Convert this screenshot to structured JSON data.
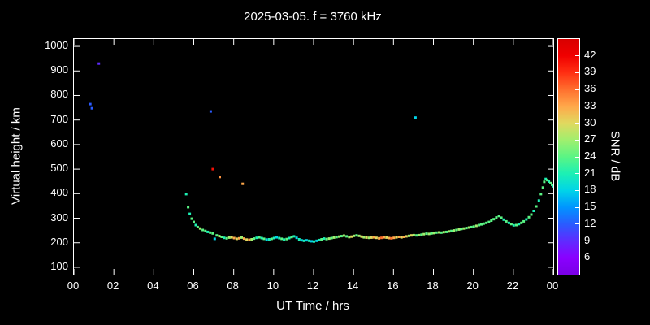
{
  "chart_data": {
    "type": "scatter",
    "title": "2025-03-05. f = 3760 kHz",
    "xlabel": "UT Time / hrs",
    "ylabel": "Virtual height / km",
    "xlim": [
      0,
      24
    ],
    "ylim": [
      70,
      1030
    ],
    "grid": false,
    "background": "#000000",
    "axis_color": "#ffffff",
    "marker": "square",
    "marker_size_px": 3,
    "x_ticks": {
      "values": [
        0,
        2,
        4,
        6,
        8,
        10,
        12,
        14,
        16,
        18,
        20,
        22,
        24
      ],
      "labels": [
        "00",
        "02",
        "04",
        "06",
        "08",
        "10",
        "12",
        "14",
        "16",
        "18",
        "20",
        "22",
        "00"
      ]
    },
    "y_ticks": [
      100,
      200,
      300,
      400,
      500,
      600,
      700,
      800,
      900,
      1000
    ],
    "colorbar": {
      "label": "SNR / dB",
      "ticks": [
        6,
        9,
        12,
        15,
        18,
        21,
        24,
        27,
        30,
        33,
        36,
        39,
        42
      ],
      "range": [
        3,
        45
      ],
      "stops": [
        {
          "v": 3,
          "c": "#7a00e6"
        },
        {
          "v": 6,
          "c": "#8a00ff"
        },
        {
          "v": 9,
          "c": "#5f2bff"
        },
        {
          "v": 12,
          "c": "#2a5bff"
        },
        {
          "v": 15,
          "c": "#0095ff"
        },
        {
          "v": 18,
          "c": "#00d4e8"
        },
        {
          "v": 21,
          "c": "#1cf0b4"
        },
        {
          "v": 24,
          "c": "#5af584"
        },
        {
          "v": 27,
          "c": "#a0ef6e"
        },
        {
          "v": 30,
          "c": "#e0d95f"
        },
        {
          "v": 33,
          "c": "#ffa84a"
        },
        {
          "v": 36,
          "c": "#ff6f2e"
        },
        {
          "v": 39,
          "c": "#ff2f12"
        },
        {
          "v": 42,
          "c": "#f00000"
        },
        {
          "v": 45,
          "c": "#d80000"
        }
      ]
    },
    "points_format": [
      "ut_hours",
      "virtual_height_km",
      "snr_db"
    ],
    "points": [
      [
        0.82,
        765,
        12
      ],
      [
        0.9,
        748,
        12
      ],
      [
        1.25,
        930,
        9
      ],
      [
        6.85,
        735,
        12
      ],
      [
        6.95,
        500,
        41
      ],
      [
        7.3,
        468,
        34
      ],
      [
        8.45,
        440,
        33
      ],
      [
        17.1,
        710,
        18
      ],
      [
        5.62,
        398,
        21
      ],
      [
        5.72,
        345,
        24
      ],
      [
        5.8,
        318,
        21
      ],
      [
        5.9,
        298,
        24
      ],
      [
        6.0,
        285,
        24
      ],
      [
        6.1,
        272,
        21
      ],
      [
        6.2,
        264,
        24
      ],
      [
        6.32,
        258,
        27
      ],
      [
        6.45,
        252,
        24
      ],
      [
        6.58,
        248,
        24
      ],
      [
        6.7,
        244,
        21
      ],
      [
        6.82,
        241,
        24
      ],
      [
        6.95,
        238,
        24
      ],
      [
        7.05,
        216,
        18
      ],
      [
        7.15,
        230,
        24
      ],
      [
        7.28,
        227,
        27
      ],
      [
        7.4,
        224,
        24
      ],
      [
        7.52,
        220,
        21
      ],
      [
        7.65,
        218,
        24
      ],
      [
        7.78,
        221,
        27
      ],
      [
        7.9,
        222,
        30
      ],
      [
        8.02,
        219,
        33
      ],
      [
        8.15,
        216,
        30
      ],
      [
        8.28,
        218,
        33
      ],
      [
        8.4,
        221,
        27
      ],
      [
        8.52,
        217,
        33
      ],
      [
        8.65,
        213,
        30
      ],
      [
        8.78,
        212,
        33
      ],
      [
        8.9,
        214,
        27
      ],
      [
        9.02,
        217,
        24
      ],
      [
        9.15,
        220,
        21
      ],
      [
        9.28,
        222,
        24
      ],
      [
        9.4,
        219,
        21
      ],
      [
        9.52,
        216,
        24
      ],
      [
        9.65,
        213,
        18
      ],
      [
        9.78,
        214,
        21
      ],
      [
        9.9,
        216,
        24
      ],
      [
        10.02,
        219,
        21
      ],
      [
        10.15,
        222,
        18
      ],
      [
        10.28,
        219,
        21
      ],
      [
        10.4,
        216,
        24
      ],
      [
        10.52,
        213,
        21
      ],
      [
        10.65,
        215,
        24
      ],
      [
        10.78,
        219,
        21
      ],
      [
        10.9,
        223,
        24
      ],
      [
        11.02,
        226,
        21
      ],
      [
        11.15,
        220,
        18
      ],
      [
        11.28,
        214,
        21
      ],
      [
        11.4,
        210,
        18
      ],
      [
        11.52,
        208,
        21
      ],
      [
        11.65,
        210,
        18
      ],
      [
        11.78,
        208,
        21
      ],
      [
        11.9,
        206,
        18
      ],
      [
        12.02,
        205,
        21
      ],
      [
        12.15,
        208,
        18
      ],
      [
        12.28,
        211,
        21
      ],
      [
        12.4,
        214,
        24
      ],
      [
        12.52,
        217,
        21
      ],
      [
        12.65,
        215,
        24
      ],
      [
        12.78,
        217,
        27
      ],
      [
        12.9,
        219,
        24
      ],
      [
        13.02,
        221,
        27
      ],
      [
        13.15,
        223,
        24
      ],
      [
        13.28,
        225,
        27
      ],
      [
        13.4,
        227,
        24
      ],
      [
        13.52,
        229,
        27
      ],
      [
        13.65,
        226,
        24
      ],
      [
        13.78,
        223,
        27
      ],
      [
        13.9,
        225,
        30
      ],
      [
        14.02,
        228,
        27
      ],
      [
        14.15,
        230,
        24
      ],
      [
        14.28,
        228,
        27
      ],
      [
        14.4,
        225,
        30
      ],
      [
        14.52,
        222,
        27
      ],
      [
        14.65,
        221,
        30
      ],
      [
        14.78,
        220,
        27
      ],
      [
        14.9,
        221,
        30
      ],
      [
        15.02,
        222,
        33
      ],
      [
        15.15,
        220,
        30
      ],
      [
        15.28,
        218,
        33
      ],
      [
        15.4,
        220,
        36
      ],
      [
        15.52,
        222,
        33
      ],
      [
        15.65,
        221,
        30
      ],
      [
        15.78,
        219,
        33
      ],
      [
        15.9,
        218,
        36
      ],
      [
        16.02,
        220,
        33
      ],
      [
        16.15,
        222,
        30
      ],
      [
        16.28,
        224,
        33
      ],
      [
        16.4,
        222,
        30
      ],
      [
        16.52,
        224,
        33
      ],
      [
        16.65,
        226,
        30
      ],
      [
        16.78,
        228,
        27
      ],
      [
        16.9,
        230,
        30
      ],
      [
        17.02,
        231,
        27
      ],
      [
        17.15,
        230,
        24
      ],
      [
        17.28,
        231,
        27
      ],
      [
        17.4,
        233,
        24
      ],
      [
        17.52,
        235,
        27
      ],
      [
        17.65,
        237,
        24
      ],
      [
        17.78,
        236,
        27
      ],
      [
        17.9,
        238,
        24
      ],
      [
        18.02,
        239,
        27
      ],
      [
        18.15,
        241,
        24
      ],
      [
        18.28,
        242,
        27
      ],
      [
        18.4,
        241,
        24
      ],
      [
        18.52,
        243,
        27
      ],
      [
        18.65,
        244,
        24
      ],
      [
        18.78,
        246,
        27
      ],
      [
        18.9,
        248,
        24
      ],
      [
        19.02,
        250,
        27
      ],
      [
        19.15,
        252,
        24
      ],
      [
        19.28,
        254,
        27
      ],
      [
        19.4,
        256,
        24
      ],
      [
        19.52,
        258,
        27
      ],
      [
        19.65,
        260,
        24
      ],
      [
        19.78,
        262,
        27
      ],
      [
        19.9,
        264,
        24
      ],
      [
        20.02,
        266,
        24
      ],
      [
        20.15,
        269,
        27
      ],
      [
        20.28,
        272,
        24
      ],
      [
        20.4,
        275,
        24
      ],
      [
        20.52,
        278,
        24
      ],
      [
        20.65,
        281,
        24
      ],
      [
        20.78,
        285,
        24
      ],
      [
        20.9,
        290,
        24
      ],
      [
        21.02,
        296,
        24
      ],
      [
        21.15,
        303,
        24
      ],
      [
        21.28,
        309,
        24
      ],
      [
        21.4,
        302,
        24
      ],
      [
        21.52,
        294,
        21
      ],
      [
        21.65,
        287,
        24
      ],
      [
        21.78,
        281,
        21
      ],
      [
        21.9,
        276,
        24
      ],
      [
        22.02,
        271,
        21
      ],
      [
        22.15,
        272,
        24
      ],
      [
        22.28,
        276,
        21
      ],
      [
        22.4,
        281,
        24
      ],
      [
        22.52,
        287,
        24
      ],
      [
        22.65,
        295,
        21
      ],
      [
        22.78,
        304,
        24
      ],
      [
        22.9,
        315,
        24
      ],
      [
        23.02,
        330,
        21
      ],
      [
        23.15,
        348,
        24
      ],
      [
        23.28,
        372,
        21
      ],
      [
        23.38,
        398,
        24
      ],
      [
        23.48,
        425,
        24
      ],
      [
        23.55,
        448,
        24
      ],
      [
        23.62,
        460,
        21
      ],
      [
        23.7,
        455,
        24
      ],
      [
        23.78,
        449,
        21
      ],
      [
        23.86,
        443,
        24
      ],
      [
        23.94,
        436,
        24
      ],
      [
        24.0,
        430,
        21
      ]
    ]
  }
}
